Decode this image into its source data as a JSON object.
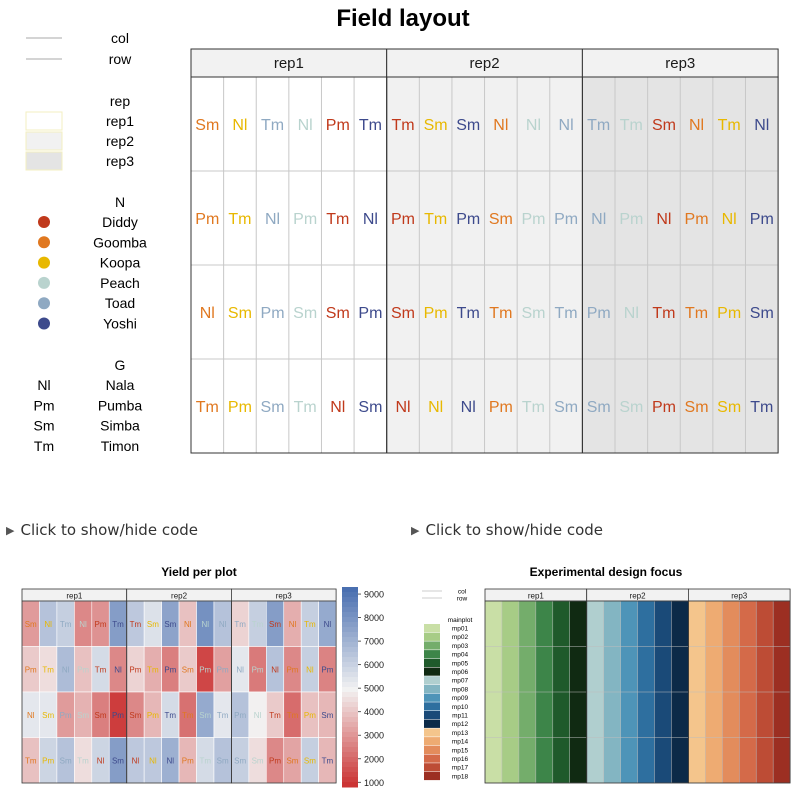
{
  "chart_data": [
    {
      "type": "heatmap",
      "title": "Field layout",
      "reps": [
        "rep1",
        "rep2",
        "rep3"
      ],
      "cols_per_rep": 6,
      "rows": 4,
      "rep_fill": {
        "rep1": "#ffffff",
        "rep2": "#f1f1f1",
        "rep3": "#e4e4e4"
      },
      "N_colors": {
        "Diddy": "#c0391b",
        "Goomba": "#e07820",
        "Koopa": "#e8b800",
        "Peach": "#b9d3ce",
        "Toad": "#8fa9c2",
        "Yoshi": "#3d4a8c"
      },
      "G_abbr": {
        "Nl": "Nala",
        "Pm": "Pumba",
        "Sm": "Simba",
        "Tm": "Timon"
      },
      "cells": [
        [
          [
            "Sm",
            "Goomba"
          ],
          [
            "Nl",
            "Koopa"
          ],
          [
            "Tm",
            "Toad"
          ],
          [
            "Nl",
            "Peach"
          ],
          [
            "Pm",
            "Diddy"
          ],
          [
            "Tm",
            "Yoshi"
          ],
          [
            "Tm",
            "Diddy"
          ],
          [
            "Sm",
            "Koopa"
          ],
          [
            "Sm",
            "Yoshi"
          ],
          [
            "Nl",
            "Goomba"
          ],
          [
            "Nl",
            "Peach"
          ],
          [
            "Nl",
            "Toad"
          ],
          [
            "Tm",
            "Toad"
          ],
          [
            "Tm",
            "Peach"
          ],
          [
            "Sm",
            "Diddy"
          ],
          [
            "Nl",
            "Goomba"
          ],
          [
            "Tm",
            "Koopa"
          ],
          [
            "Nl",
            "Yoshi"
          ]
        ],
        [
          [
            "Pm",
            "Goomba"
          ],
          [
            "Tm",
            "Koopa"
          ],
          [
            "Nl",
            "Toad"
          ],
          [
            "Pm",
            "Peach"
          ],
          [
            "Tm",
            "Diddy"
          ],
          [
            "Nl",
            "Yoshi"
          ],
          [
            "Pm",
            "Diddy"
          ],
          [
            "Tm",
            "Koopa"
          ],
          [
            "Pm",
            "Yoshi"
          ],
          [
            "Sm",
            "Goomba"
          ],
          [
            "Pm",
            "Peach"
          ],
          [
            "Pm",
            "Toad"
          ],
          [
            "Nl",
            "Toad"
          ],
          [
            "Pm",
            "Peach"
          ],
          [
            "Nl",
            "Diddy"
          ],
          [
            "Pm",
            "Goomba"
          ],
          [
            "Nl",
            "Koopa"
          ],
          [
            "Pm",
            "Yoshi"
          ]
        ],
        [
          [
            "Nl",
            "Goomba"
          ],
          [
            "Sm",
            "Koopa"
          ],
          [
            "Pm",
            "Toad"
          ],
          [
            "Sm",
            "Peach"
          ],
          [
            "Sm",
            "Diddy"
          ],
          [
            "Pm",
            "Yoshi"
          ],
          [
            "Sm",
            "Diddy"
          ],
          [
            "Pm",
            "Koopa"
          ],
          [
            "Tm",
            "Yoshi"
          ],
          [
            "Tm",
            "Goomba"
          ],
          [
            "Sm",
            "Peach"
          ],
          [
            "Tm",
            "Toad"
          ],
          [
            "Pm",
            "Toad"
          ],
          [
            "Nl",
            "Peach"
          ],
          [
            "Tm",
            "Diddy"
          ],
          [
            "Tm",
            "Goomba"
          ],
          [
            "Pm",
            "Koopa"
          ],
          [
            "Sm",
            "Yoshi"
          ]
        ],
        [
          [
            "Tm",
            "Goomba"
          ],
          [
            "Pm",
            "Koopa"
          ],
          [
            "Sm",
            "Toad"
          ],
          [
            "Tm",
            "Peach"
          ],
          [
            "Nl",
            "Diddy"
          ],
          [
            "Sm",
            "Yoshi"
          ],
          [
            "Nl",
            "Diddy"
          ],
          [
            "Nl",
            "Koopa"
          ],
          [
            "Nl",
            "Yoshi"
          ],
          [
            "Pm",
            "Goomba"
          ],
          [
            "Tm",
            "Peach"
          ],
          [
            "Sm",
            "Toad"
          ],
          [
            "Sm",
            "Toad"
          ],
          [
            "Sm",
            "Peach"
          ],
          [
            "Pm",
            "Diddy"
          ],
          [
            "Sm",
            "Goomba"
          ],
          [
            "Sm",
            "Koopa"
          ],
          [
            "Tm",
            "Yoshi"
          ]
        ]
      ],
      "legend": {
        "lines": [
          "col",
          "row"
        ],
        "rep_title": "rep",
        "rep_items": [
          "rep1",
          "rep2",
          "rep3"
        ],
        "n_title": "N",
        "n_items": [
          "Diddy",
          "Goomba",
          "Koopa",
          "Peach",
          "Toad",
          "Yoshi"
        ],
        "g_title": "G",
        "g_items": [
          [
            "Nl",
            "Nala"
          ],
          [
            "Pm",
            "Pumba"
          ],
          [
            "Sm",
            "Simba"
          ],
          [
            "Tm",
            "Timon"
          ]
        ]
      },
      "grid": true
    },
    {
      "type": "heatmap",
      "title": "Yield per plot",
      "reps": [
        "rep1",
        "rep2",
        "rep3"
      ],
      "colorbar": {
        "ticks": [
          1000,
          2000,
          3000,
          4000,
          5000,
          6000,
          7000,
          8000,
          9000
        ],
        "range": [
          800,
          9300
        ],
        "low_color": "#c92a2a",
        "mid_color": "#f2f2f2",
        "high_color": "#4a6fb0"
      },
      "values": [
        [
          3200,
          6600,
          6200,
          2800,
          3000,
          7800,
          6400,
          5600,
          7600,
          4000,
          8200,
          6600,
          4400,
          6200,
          7800,
          3600,
          6200,
          7400
        ],
        [
          4200,
          4600,
          6800,
          4000,
          5800,
          2800,
          4400,
          3600,
          2600,
          4200,
          1400,
          3300,
          5400,
          2500,
          6600,
          2800,
          6200,
          2700
        ],
        [
          5400,
          5400,
          3200,
          3700,
          2600,
          1200,
          2800,
          3800,
          5800,
          2300,
          7400,
          5400,
          6600,
          5000,
          4200,
          2200,
          4000,
          3800
        ],
        [
          4000,
          6000,
          6600,
          4600,
          6000,
          7800,
          6400,
          6400,
          7200,
          3800,
          5800,
          6600,
          6200,
          4600,
          2800,
          3400,
          6200,
          3800
        ]
      ]
    },
    {
      "type": "heatmap",
      "title": "Experimental design focus",
      "reps": [
        "rep1",
        "rep2",
        "rep3"
      ],
      "legend": {
        "lines": [
          "col",
          "row"
        ],
        "title": "mainplot",
        "items": [
          "mp01",
          "mp02",
          "mp03",
          "mp04",
          "mp05",
          "mp06",
          "mp07",
          "mp08",
          "mp09",
          "mp10",
          "mp11",
          "mp12",
          "mp13",
          "mp14",
          "mp15",
          "mp16",
          "mp17",
          "mp18"
        ]
      },
      "mp_colors": [
        "#c9dfa6",
        "#a7cc86",
        "#74ad6b",
        "#3d8549",
        "#1f5a2b",
        "#102a12",
        "#b0cfcf",
        "#83b5c2",
        "#4e94b8",
        "#2e6f9f",
        "#1a4a78",
        "#0c2a48",
        "#f4c58c",
        "#eeab72",
        "#e38c5c",
        "#d46a49",
        "#bd4c35",
        "#9c2f22"
      ]
    }
  ],
  "ui": {
    "toggle1": "Click to show/hide code",
    "toggle2": "Click to show/hide code"
  }
}
